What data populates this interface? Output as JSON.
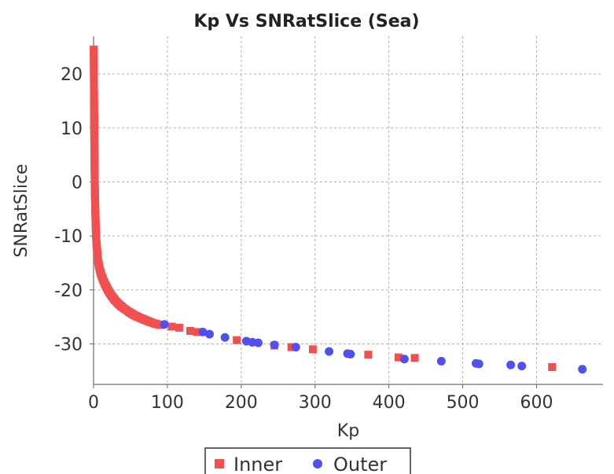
{
  "chart_data": {
    "type": "scatter",
    "title": "Kp Vs SNRatSlice (Sea)",
    "xlabel": "Kp",
    "ylabel": "SNRatSlice",
    "xlim": [
      0,
      690
    ],
    "ylim": [
      -37.5,
      27
    ],
    "xticks": [
      0,
      100,
      200,
      300,
      400,
      500,
      600
    ],
    "yticks": [
      20,
      10,
      0,
      -10,
      -20,
      -30
    ],
    "grid": true,
    "legend_position": "bottom",
    "series": [
      {
        "name": "Inner",
        "color": "#f05050",
        "marker": "square",
        "points": [
          [
            0.3,
            24.5
          ],
          [
            0.4,
            22
          ],
          [
            0.5,
            19
          ],
          [
            0.6,
            16
          ],
          [
            0.8,
            12
          ],
          [
            1.0,
            8
          ],
          [
            1.3,
            4
          ],
          [
            1.6,
            0
          ],
          [
            2.0,
            -3
          ],
          [
            2.5,
            -6
          ],
          [
            3.0,
            -8.5
          ],
          [
            3.5,
            -10
          ],
          [
            4.0,
            -11.5
          ],
          [
            5.0,
            -13
          ],
          [
            6.0,
            -14.5
          ],
          [
            7.0,
            -15.3
          ],
          [
            8.0,
            -16
          ],
          [
            10,
            -17
          ],
          [
            12,
            -17.8
          ],
          [
            15,
            -18.8
          ],
          [
            18,
            -19.6
          ],
          [
            21,
            -20.4
          ],
          [
            25,
            -21.2
          ],
          [
            29,
            -21.9
          ],
          [
            33,
            -22.5
          ],
          [
            38,
            -23.1
          ],
          [
            43,
            -23.6
          ],
          [
            48,
            -24.1
          ],
          [
            54,
            -24.6
          ],
          [
            60,
            -25.0
          ],
          [
            67,
            -25.4
          ],
          [
            74,
            -25.8
          ],
          [
            82,
            -26.2
          ],
          [
            90,
            -26.5
          ],
          [
            106,
            -26.8
          ],
          [
            116,
            -27.0
          ],
          [
            131,
            -27.6
          ],
          [
            140,
            -27.8
          ],
          [
            194,
            -29.3
          ],
          [
            245,
            -30.3
          ],
          [
            268,
            -30.6
          ],
          [
            297,
            -31.0
          ],
          [
            372,
            -32.0
          ],
          [
            413,
            -32.5
          ],
          [
            435,
            -32.6
          ],
          [
            621,
            -34.3
          ]
        ]
      },
      {
        "name": "Outer",
        "color": "#5050f0",
        "marker": "circle",
        "points": [
          [
            96,
            -26.4
          ],
          [
            148,
            -27.8
          ],
          [
            157,
            -28.2
          ],
          [
            178,
            -28.8
          ],
          [
            207,
            -29.5
          ],
          [
            215,
            -29.7
          ],
          [
            223,
            -29.8
          ],
          [
            245,
            -30.2
          ],
          [
            274,
            -30.6
          ],
          [
            319,
            -31.4
          ],
          [
            344,
            -31.8
          ],
          [
            348,
            -31.9
          ],
          [
            421,
            -32.8
          ],
          [
            471,
            -33.2
          ],
          [
            518,
            -33.6
          ],
          [
            522,
            -33.7
          ],
          [
            565,
            -33.9
          ],
          [
            580,
            -34.1
          ],
          [
            662,
            -34.7
          ]
        ]
      }
    ]
  }
}
